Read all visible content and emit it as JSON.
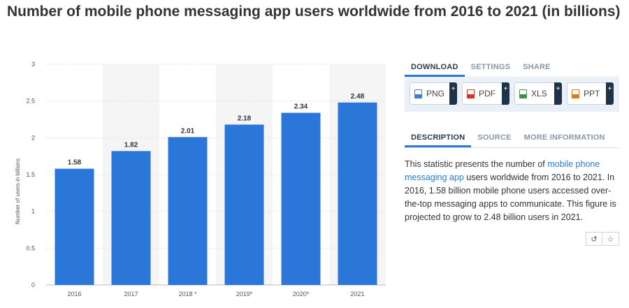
{
  "page": {
    "title": "Number of mobile phone messaging app users worldwide from 2016 to 2021 (in billions)"
  },
  "chart_data": {
    "type": "bar",
    "title": "",
    "categories": [
      "2016",
      "2017",
      "2018 *",
      "2019*",
      "2020*",
      "2021"
    ],
    "values": [
      1.58,
      1.82,
      2.01,
      2.18,
      2.34,
      2.48
    ],
    "value_labels": [
      "1.58",
      "1.82",
      "2.01",
      "2.18",
      "2.34",
      "2.48"
    ],
    "xlabel": "",
    "ylabel": "Number of users in billions",
    "ylim": [
      0,
      3
    ],
    "yticks": [
      0,
      0.5,
      1,
      1.5,
      2,
      2.5,
      3
    ],
    "ytick_labels": [
      "0",
      "0.5",
      "1",
      "1.5",
      "2",
      "2.5",
      "3"
    ],
    "grid": true,
    "bar_color": "#2b77d9",
    "band_color": "#f5f5f5"
  },
  "side": {
    "tabs": [
      {
        "label": "DOWNLOAD"
      },
      {
        "label": "SETTINGS"
      },
      {
        "label": "SHARE"
      }
    ],
    "downloads": [
      {
        "label": "PNG",
        "icon": "png-file-icon",
        "color": "#3b7dd8"
      },
      {
        "label": "PDF",
        "icon": "pdf-file-icon",
        "color": "#d9302c"
      },
      {
        "label": "XLS",
        "icon": "xls-file-icon",
        "color": "#3a9a3a"
      },
      {
        "label": "PPT",
        "icon": "ppt-file-icon",
        "color": "#e07a1f"
      }
    ],
    "plus_label": "+",
    "desc_tabs": [
      {
        "label": "DESCRIPTION"
      },
      {
        "label": "SOURCE"
      },
      {
        "label": "MORE INFORMATION"
      }
    ],
    "description": {
      "before": "This statistic presents the number of ",
      "link": "mobile phone messaging app",
      "after": " users worldwide from 2016 to 2021. In 2016, 1.58 billion mobile phone users accessed over-the-top messaging apps to communicate. This figure is projected to grow to 2.48 billion users in 2021."
    },
    "mini_buttons": [
      {
        "icon": "history-icon",
        "glyph": "↺"
      },
      {
        "icon": "star-icon",
        "glyph": "☆"
      }
    ]
  }
}
